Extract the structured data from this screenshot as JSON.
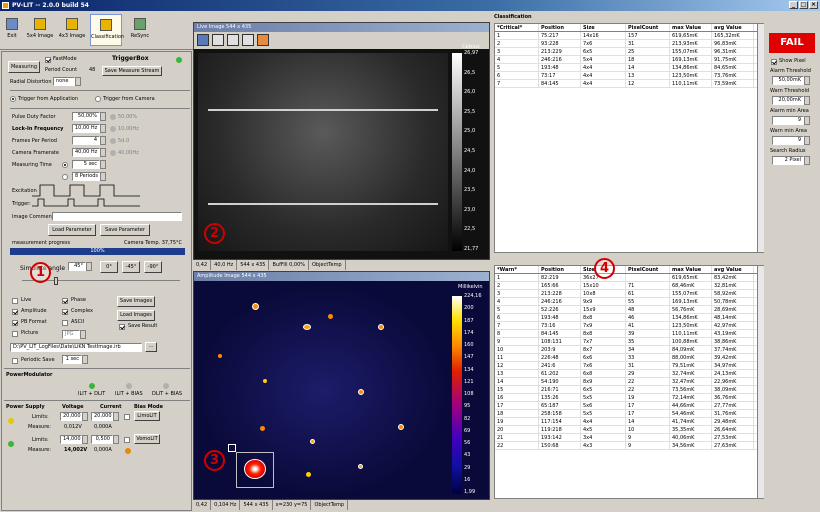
{
  "app": {
    "title": "PV-LIT -- 2.0.0 build 54"
  },
  "toolbar": {
    "items": [
      "Exit",
      "5x4 Image",
      "4x3 Image",
      "Classification",
      "ReSync"
    ]
  },
  "left": {
    "measuring_label": "Measuring",
    "fastmode_label": "FastMode",
    "triggerbox_label": "TriggerBox",
    "period_count_label": "Period Count",
    "period_count_value": "48",
    "save_stream_label": "Save Measure Stream",
    "radial_label": "Radial Distortion",
    "radial_value": "none",
    "trigger_app": "Trigger from Application",
    "trigger_cam": "Trigger from Camera",
    "pulse_label": "Pulse Duty Factor",
    "pulse_value": "50,00%",
    "pulse_grey": "50,00%",
    "lockin_label": "Lock-In Frequency",
    "lockin_value": "10,00 Hz",
    "lockin_grey": "10,00Hz",
    "frames_label": "Frames Per Period",
    "frames_value": "4",
    "frames_grey": "5d.0",
    "framerate_label": "Camera Framerate",
    "framerate_value": "40,00 Hz",
    "framerate_grey": "40,00Hz",
    "mtime_label": "Measuring Time",
    "mtime_value": "5 sec",
    "periods_value": "8 Periods",
    "excitation_label": "Excitation",
    "trigger_label": "Trigger:",
    "comment_label": "Image Comment",
    "load_param": "Load Parameter",
    "save_param": "Save Parameter",
    "progress_label": "measurement progress",
    "camtemp_label": "Camera Temp.  37,75°C",
    "progress_value": "100%",
    "simulate_label": "Simulate angle",
    "angle_value": "45°",
    "btn_0": "0°",
    "btn_m45": "-45°",
    "btn_m90": "-90°",
    "live": "Live",
    "phase": "Phase",
    "save_images": "Save Images",
    "amplitude": "Amplitude",
    "complex": "Complex",
    "load_images": "Load Images",
    "pb_format": "PB Format",
    "ascii": "ASCII",
    "save_result": "Save Result",
    "picture": "Picture",
    "jpg": "JPG",
    "path_value": "D:\\PV_LIT_LogFiles\\Date\\LiKN TestImage.irb",
    "periodic_save": "Periodic Save",
    "periodic_value": "1 sec",
    "power_modulator": "PowerModulator",
    "pm_labels": [
      "ILIT + DLIT",
      "ILIT + BIAS",
      "DLIT + BIAS"
    ],
    "ps_headers": [
      "Power Supply",
      "Voltage",
      "Current",
      "Bias Mode"
    ],
    "limits_label": "Limits:",
    "measure_label": "Measure:",
    "ps1": {
      "v_limit": "20,000",
      "i_limit": "20,000",
      "v_meas": "0,012V",
      "i_meas": "0,000A",
      "mode": "LimoLIT"
    },
    "ps2": {
      "v_limit": "14,000",
      "i_limit": "0,500",
      "v_meas": "14,002V",
      "i_meas": "0,000A",
      "mode": "VomoLIT"
    }
  },
  "live_view": {
    "title": "Live Image     544 x 435",
    "scale_title": "Celsius",
    "ticks": [
      "26,97",
      "26,5",
      "26,0",
      "25,5",
      "25,0",
      "24,5",
      "24,0",
      "23,5",
      "23,0",
      "22,5",
      "21,77"
    ],
    "status": [
      "0,42",
      "40,0 Hz",
      "544 x 435",
      "BufFill 0,00%",
      "ObjectTemp"
    ]
  },
  "amp_view": {
    "title": "Amplitude Image     544 x 435",
    "scale_title": "Millikelvin",
    "ticks": [
      "224,16",
      "200",
      "187",
      "174",
      "160",
      "147",
      "134",
      "121",
      "108",
      "95",
      "82",
      "69",
      "56",
      "43",
      "29",
      "16",
      "1,99"
    ],
    "status": [
      "0,42",
      "0,104 Hz",
      "544 x 435",
      "x=230 y=75",
      "ObjectTemp"
    ]
  },
  "critical_table": {
    "section": "Classification",
    "headers": [
      "*Critical*",
      "Position",
      "Size",
      "PixelCount",
      "max Value",
      "avg Value"
    ],
    "rows": [
      [
        "1",
        "75:217",
        "14x16",
        "157",
        "619,65mK",
        "165,32mK"
      ],
      [
        "2",
        "93:228",
        "7x6",
        "31",
        "213,93mK",
        "96,83mK"
      ],
      [
        "3",
        "213:229",
        "6x5",
        "25",
        "155,07mK",
        "96,31mK"
      ],
      [
        "4",
        "246:216",
        "5x4",
        "18",
        "169,13mK",
        "91,75mK"
      ],
      [
        "5",
        "193:48",
        "4x4",
        "14",
        "134,86mK",
        "84,65mK"
      ],
      [
        "6",
        "73:17",
        "4x4",
        "13",
        "123,50mK",
        "73,76mK"
      ],
      [
        "7",
        "84:145",
        "4x4",
        "12",
        "110,11mK",
        "73,59mK"
      ]
    ]
  },
  "warn_table": {
    "headers": [
      "*Warn*",
      "Position",
      "Size",
      "PixelCount",
      "max Value",
      "avg Value"
    ],
    "rows": [
      [
        "1",
        "82:219",
        "36x27",
        "",
        "619,65mK",
        "83,42mK"
      ],
      [
        "2",
        "165:66",
        "15x10",
        "71",
        "68,46mK",
        "32,81mK"
      ],
      [
        "3",
        "213:228",
        "10x8",
        "61",
        "155,07mK",
        "58,92mK"
      ],
      [
        "4",
        "246:216",
        "9x9",
        "55",
        "169,13mK",
        "50,78mK"
      ],
      [
        "5",
        "52:226",
        "15x9",
        "48",
        "56,76mK",
        "28,69mK"
      ],
      [
        "6",
        "193:48",
        "8x8",
        "46",
        "134,86mK",
        "48,14mK"
      ],
      [
        "7",
        "73:16",
        "7x9",
        "41",
        "123,50mK",
        "42,97mK"
      ],
      [
        "8",
        "84:145",
        "8x8",
        "39",
        "110,11mK",
        "43,19mK"
      ],
      [
        "9",
        "108:131",
        "7x7",
        "35",
        "100,88mK",
        "38,86mK"
      ],
      [
        "10",
        "203:9",
        "8x7",
        "34",
        "84,09mK",
        "37,74mK"
      ],
      [
        "11",
        "226:48",
        "6x6",
        "33",
        "88,00mK",
        "39,42mK"
      ],
      [
        "12",
        "241:6",
        "7x6",
        "31",
        "79,51mK",
        "34,97mK"
      ],
      [
        "13",
        "61:202",
        "6x8",
        "29",
        "32,74mK",
        "24,13mK"
      ],
      [
        "14",
        "54:190",
        "8x9",
        "22",
        "32,47mK",
        "22,96mK"
      ],
      [
        "15",
        "216:71",
        "6x5",
        "22",
        "73,56mK",
        "38,09mK"
      ],
      [
        "16",
        "135:26",
        "5x5",
        "19",
        "72,14mK",
        "36,76mK"
      ],
      [
        "17",
        "65:187",
        "5x6",
        "17",
        "44,66mK",
        "27,77mK"
      ],
      [
        "18",
        "258:158",
        "5x5",
        "17",
        "54,46mK",
        "31,76mK"
      ],
      [
        "19",
        "117:154",
        "4x4",
        "14",
        "41,74mK",
        "29,48mK"
      ],
      [
        "20",
        "119:218",
        "4x5",
        "10",
        "35,35mK",
        "26,64mK"
      ],
      [
        "21",
        "193:142",
        "3x4",
        "9",
        "40,06mK",
        "27,53mK"
      ],
      [
        "22",
        "150:68",
        "4x3",
        "9",
        "34,56mK",
        "27,63mK"
      ]
    ]
  },
  "right_panel": {
    "status": "FAIL",
    "show_pixel": "Show Pixel",
    "alarm_threshold_label": "Alarm Threshold",
    "alarm_threshold": "50,00mK",
    "warn_threshold_label": "Warn Threshold",
    "warn_threshold": "20,00mK",
    "alarm_area_label": "Alarm min Area",
    "alarm_area": "9",
    "warn_area_label": "Warn min Area",
    "warn_area": "9",
    "search_radius_label": "Search Radius",
    "search_radius": "2 Pixel"
  },
  "callouts": [
    "1",
    "2",
    "3",
    "4"
  ],
  "colors": {
    "fail": "#e00000",
    "progress": "#1e3c8c",
    "callout": "#d00000"
  }
}
